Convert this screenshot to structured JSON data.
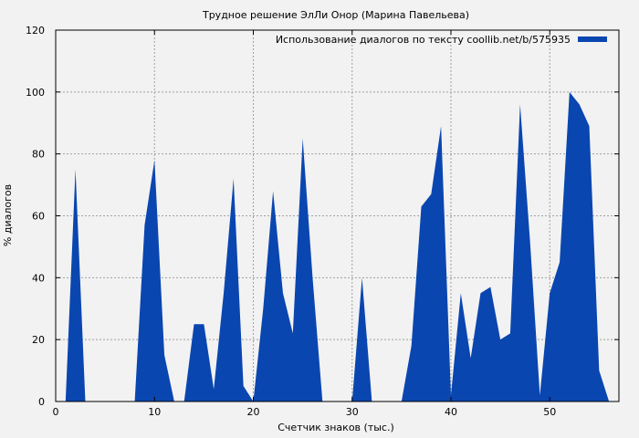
{
  "chart_data": {
    "type": "area",
    "title": "Трудное решение ЭлЛи Онор (Марина Павельева)",
    "xlabel": "Счетчик знаков (тыс.)",
    "ylabel": "% диалогов",
    "xlim": [
      0,
      57
    ],
    "ylim": [
      0,
      120
    ],
    "xticks": [
      0,
      10,
      20,
      30,
      40,
      50
    ],
    "yticks": [
      0,
      20,
      40,
      60,
      80,
      100,
      120
    ],
    "grid": true,
    "legend_position": "top-right",
    "colors": {
      "fill": "#0a46b0",
      "background": "#f2f2f2",
      "grid": "#a0a0a0"
    },
    "series": [
      {
        "name": "Использование диалогов по тексту coollib.net/b/575935",
        "x": [
          1,
          2,
          3,
          4,
          5,
          6,
          7,
          8,
          9,
          10,
          11,
          12,
          13,
          14,
          15,
          16,
          17,
          18,
          19,
          20,
          21,
          22,
          23,
          24,
          25,
          26,
          27,
          28,
          29,
          30,
          31,
          32,
          33,
          34,
          35,
          36,
          37,
          38,
          39,
          40,
          41,
          42,
          43,
          44,
          45,
          46,
          47,
          48,
          49,
          50,
          51,
          52,
          53,
          54,
          55,
          56
        ],
        "values": [
          0,
          75,
          0,
          0,
          0,
          0,
          0,
          0,
          57,
          78,
          15,
          0,
          0,
          25,
          25,
          4,
          35,
          72,
          5,
          0,
          30,
          68,
          35,
          22,
          85,
          40,
          0,
          0,
          0,
          0,
          40,
          0,
          0,
          0,
          0,
          18,
          63,
          67,
          89,
          2,
          35,
          14,
          35,
          37,
          20,
          22,
          96,
          52,
          2,
          35,
          45,
          100,
          96,
          89,
          10,
          0
        ]
      }
    ]
  }
}
